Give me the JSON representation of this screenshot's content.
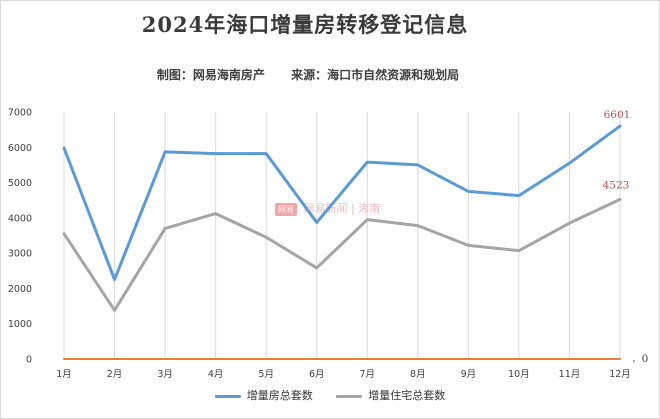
{
  "title": "2024年海口增量房转移登记信息",
  "subtitle": {
    "maker": "制图：网易海南房产",
    "source": "来源：海口市自然资源和规划局"
  },
  "watermark": {
    "logo": "网易",
    "text": "网易新闻",
    "suffix": "| 海南"
  },
  "chart_data": {
    "type": "line",
    "categories": [
      "1月",
      "2月",
      "3月",
      "4月",
      "5月",
      "6月",
      "7月",
      "8月",
      "9月",
      "10月",
      "11月",
      "12月"
    ],
    "ylim": [
      0,
      7000
    ],
    "yticks": [
      0,
      1000,
      2000,
      3000,
      4000,
      5000,
      6000,
      7000
    ],
    "grid": "vertical",
    "legend_position": "bottom",
    "series": [
      {
        "name": "增量房总套数",
        "color": "#5b9bd5",
        "values": [
          5980,
          2250,
          5870,
          5820,
          5820,
          3870,
          5580,
          5500,
          4750,
          4630,
          5550,
          6601
        ],
        "end_label": "6601"
      },
      {
        "name": "增量住宅总套数",
        "color": "#a5a5a5",
        "values": [
          3550,
          1380,
          3700,
          4120,
          3450,
          2580,
          3950,
          3780,
          3220,
          3070,
          3850,
          4523
        ],
        "end_label": "4523"
      },
      {
        "name": "",
        "color": "#ed7d31",
        "values": [
          0,
          0,
          0,
          0,
          0,
          0,
          0,
          0,
          0,
          0,
          0,
          0
        ],
        "end_label": "0"
      }
    ],
    "data_label_color": "#c0504d"
  }
}
